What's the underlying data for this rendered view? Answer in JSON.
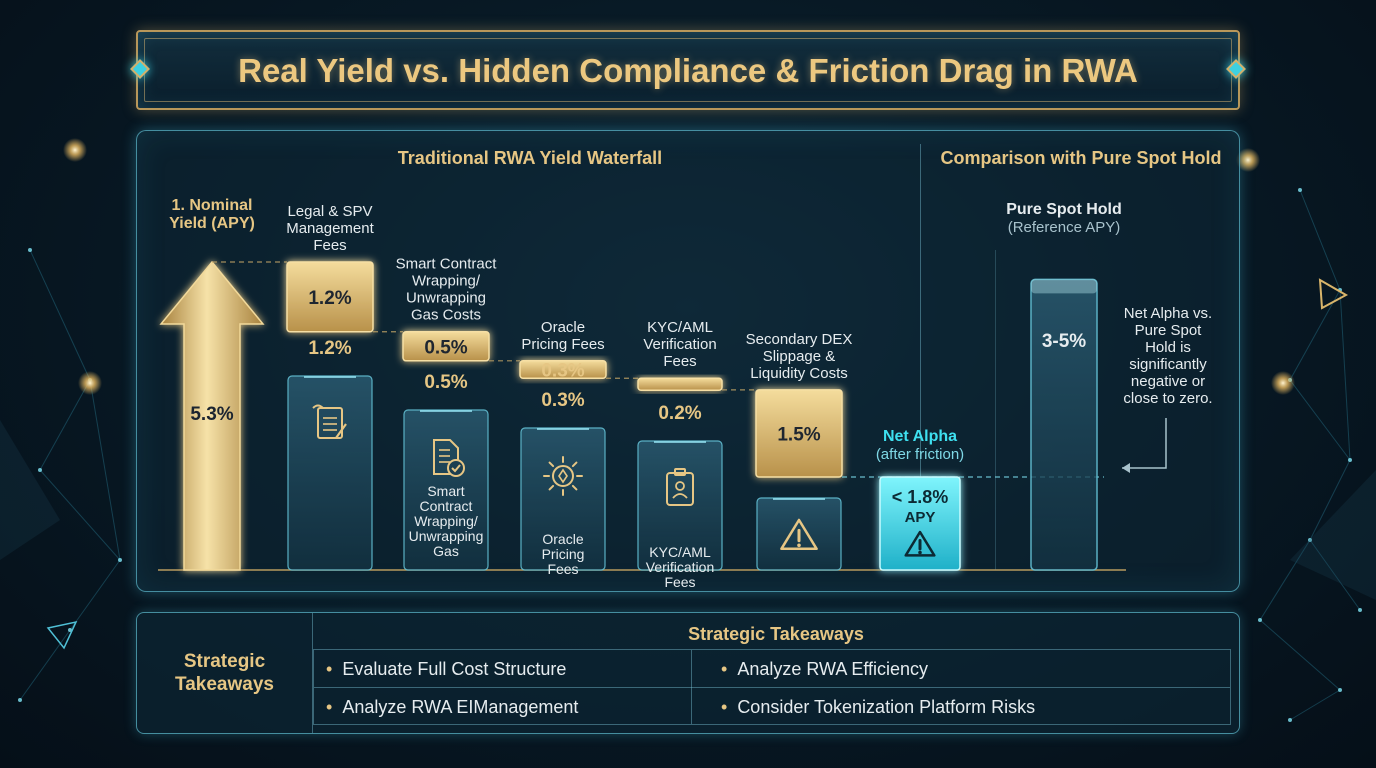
{
  "header": {
    "title": "Real Yield vs. Hidden Compliance & Friction Drag in RWA"
  },
  "colors": {
    "gold": "#e6c684",
    "gold_fill": "#c9a85c",
    "glass_bar": "#1f4a5e",
    "net_alpha": "#3ee0f0",
    "panel_border": "#5fbed2"
  },
  "chart_data": [
    {
      "type": "bar",
      "title": "Traditional RWA Yield Waterfall",
      "unit": "%",
      "nominal": {
        "label": "1. Nominal Yield (APY)",
        "value": 5.3,
        "value_label": "5.3%",
        "icon": "up-arrow-icon"
      },
      "steps": [
        {
          "name": "Legal & SPV Management Fees",
          "value": 1.2,
          "value_label": "1.2%",
          "sub_label": "1.2%",
          "bar_label": "",
          "icon": "legal-document-icon"
        },
        {
          "name": "Smart Contract Wrapping/ Unwrapping Gas Costs",
          "value": 0.5,
          "value_label": "0.5%",
          "sub_label": "0.5%",
          "bar_label": "Smart Contract Wrapping/ Unwrapping Gas",
          "icon": "contract-check-icon"
        },
        {
          "name": "Oracle Pricing Fees",
          "value": 0.3,
          "value_label": "0.3%",
          "sub_label": "0.3%",
          "bar_label": "Oracle Pricing Fees",
          "icon": "oracle-coin-icon"
        },
        {
          "name": "KYC/AML Verification Fees",
          "value": 0.2,
          "value_label": "",
          "sub_label": "0.2%",
          "bar_label": "KYC/AML Verification Fees",
          "icon": "id-badge-icon"
        },
        {
          "name": "Secondary DEX Slippage & Liquidity Costs",
          "value": 1.5,
          "value_label": "1.5%",
          "sub_label": "",
          "bar_label": "",
          "icon": "warning-icon"
        }
      ],
      "net_alpha": {
        "label": "Net Alpha",
        "sub_label": "(after friction)",
        "value_label": "< 1.8%",
        "unit_label": "APY",
        "icon": "warning-icon"
      }
    },
    {
      "type": "bar",
      "title": "Comparison with Pure Spot Hold",
      "bar": {
        "label": "Pure Spot Hold",
        "sub_label": "(Reference APY)",
        "value_range": [
          3,
          5
        ],
        "value_label": "3-5%"
      },
      "annotation": "Net Alpha vs. Pure Spot Hold is significantly negative or close to zero."
    }
  ],
  "takeaways": {
    "side_label": "Strategic Takeaways",
    "heading": "Strategic Takeaways",
    "items": [
      "Evaluate Full Cost Structure",
      "Analyze RWA Efficiency",
      "Analyze RWA EIManagement",
      "Consider Tokenization Platform Risks"
    ]
  }
}
